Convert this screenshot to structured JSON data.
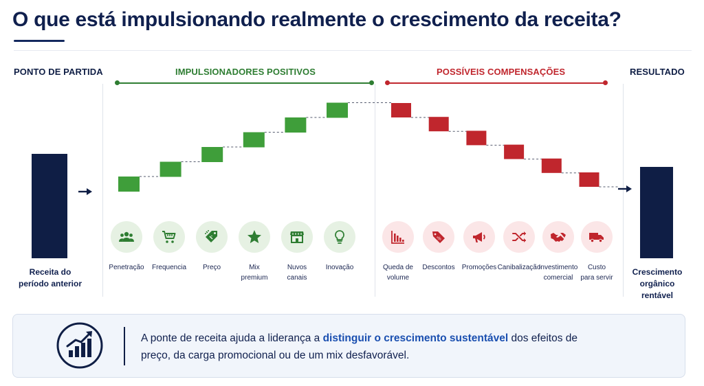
{
  "page": {
    "title": "O que está impulsionando realmente o crescimento da receita?"
  },
  "sections": {
    "start": "PONTO DE PARTIDA",
    "positive": "IMPULSIONADORES POSITIVOS",
    "negative": "POSSÍVEIS COMPENSAÇÕES",
    "result": "RESULTADO"
  },
  "colors": {
    "navy": "#0f1e45",
    "positive": "#3f9e3a",
    "negative": "#c0262d",
    "accent": "#1a4fb0"
  },
  "chart_data": {
    "type": "waterfall",
    "start": {
      "label": "Receita do\nperíodo anterior"
    },
    "steps": [
      {
        "label": "Penetração",
        "direction": "up",
        "icon": "people-icon"
      },
      {
        "label": "Frequencia",
        "direction": "up",
        "icon": "cart-icon"
      },
      {
        "label": "Preço",
        "direction": "up",
        "icon": "price-tag-icon"
      },
      {
        "label": "Mix\npremium",
        "direction": "up",
        "icon": "star-icon"
      },
      {
        "label": "Nuvos\ncanais",
        "direction": "up",
        "icon": "store-icon"
      },
      {
        "label": "Inovação",
        "direction": "up",
        "icon": "lightbulb-icon"
      },
      {
        "label": "Queda de\nvolume",
        "direction": "down",
        "icon": "declining-bars-icon"
      },
      {
        "label": "Descontos",
        "direction": "down",
        "icon": "discount-tag-icon"
      },
      {
        "label": "Promoções",
        "direction": "down",
        "icon": "megaphone-icon"
      },
      {
        "label": "Canibalização",
        "direction": "down",
        "icon": "shuffle-icon"
      },
      {
        "label": "Investimento\ncomercial",
        "direction": "down",
        "icon": "handshake-icon"
      },
      {
        "label": "Custo\npara servir",
        "direction": "down",
        "icon": "truck-icon"
      }
    ],
    "end": {
      "label": "Crescimento\norgânico\nrentável"
    }
  },
  "banner": {
    "icon": "growth-chart-icon",
    "text_before": "A ponte de receita ajuda a liderança a ",
    "text_highlight": "distinguir o crescimento sustentável",
    "text_after": " dos efeitos de preço, da carga promocional ou de um mix desfavorável."
  }
}
